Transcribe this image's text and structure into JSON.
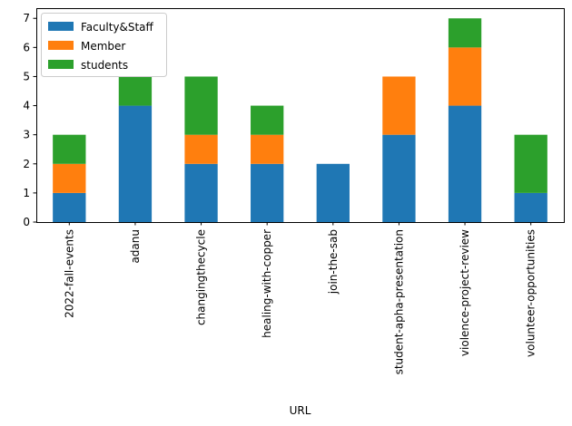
{
  "chart_data": {
    "type": "bar",
    "stacked": true,
    "categories": [
      "2022-fall-events",
      "adanu",
      "changingthecycle",
      "healing-with-copper",
      "join-the-sab",
      "student-apha-presentation",
      "violence-project-review",
      "volunteer-opportunities"
    ],
    "series": [
      {
        "name": "Faculty&Staff",
        "color": "#1f77b4",
        "values": [
          1,
          4,
          2,
          2,
          2,
          3,
          4,
          1
        ]
      },
      {
        "name": "Member",
        "color": "#ff7f0e",
        "values": [
          1,
          0,
          1,
          1,
          0,
          2,
          2,
          0
        ]
      },
      {
        "name": "students",
        "color": "#2ca02c",
        "values": [
          1,
          1,
          2,
          1,
          0,
          0,
          1,
          2
        ]
      }
    ],
    "title": "",
    "xlabel": "URL",
    "ylabel": "",
    "ylim": [
      0,
      7.35
    ],
    "yticks": [
      "0",
      "1",
      "2",
      "3",
      "4",
      "5",
      "6",
      "7"
    ],
    "grid": false,
    "legend": "top-left"
  }
}
